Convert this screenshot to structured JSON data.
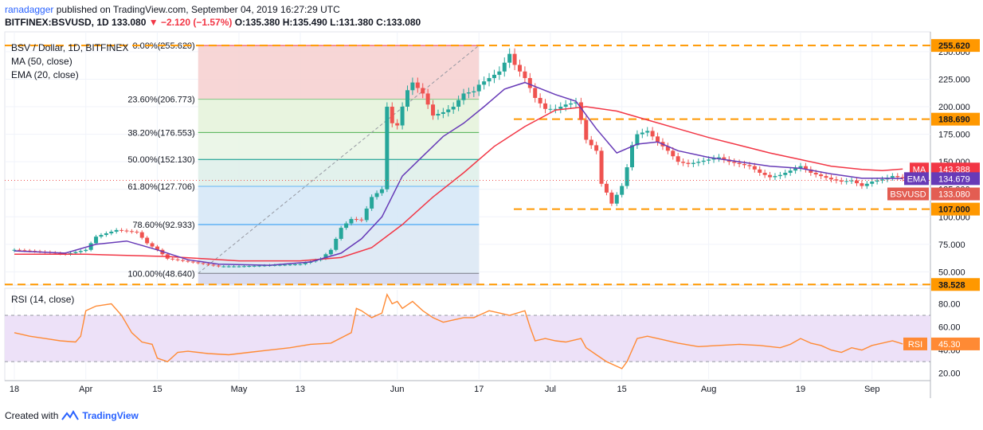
{
  "header": {
    "user": "ranadagger",
    "published": "published on TradingView.com, September 04, 2019 16:27:29 UTC",
    "symbol": "BITFINEX:BSVUSD, 1D",
    "last": "133.080",
    "change": "▼ −2.120 (−1.57%)",
    "ohlc": "O:135.380 H:135.490 L:131.380 C:133.080"
  },
  "legend": {
    "title": "BSV / Dollar, 1D, BITFINEX",
    "ma": "MA (50, close)",
    "ema": "EMA (20, close)"
  },
  "colors": {
    "candle_up": "#26a69a",
    "candle_down": "#ef5350",
    "ma": "#f23645",
    "ema": "#673ab7",
    "level": "#ff9800",
    "rsi": "#ff8a34",
    "rsi_band": "#ede1f8",
    "bsv_tag": "#e35d52",
    "text_dark": "#131722"
  },
  "chart_data": {
    "type": "candlestick",
    "title": "BSV / Dollar, 1D, BITFINEX",
    "y_range": [
      38,
      268
    ],
    "x_range_days": [
      0,
      176
    ],
    "y_ticks": [
      "50.000",
      "75.000",
      "100.000",
      "125.000",
      "150.000",
      "175.000",
      "200.000",
      "225.000",
      "250.000"
    ],
    "x_ticks": [
      {
        "label": "18",
        "day": 0
      },
      {
        "label": "Apr",
        "day": 14
      },
      {
        "label": "15",
        "day": 28
      },
      {
        "label": "May",
        "day": 44
      },
      {
        "label": "13",
        "day": 56
      },
      {
        "label": "Jun",
        "day": 75
      },
      {
        "label": "17",
        "day": 91
      },
      {
        "label": "Jul",
        "day": 105
      },
      {
        "label": "15",
        "day": 119
      },
      {
        "label": "Aug",
        "day": 136
      },
      {
        "label": "19",
        "day": 154
      },
      {
        "label": "Sep",
        "day": 168
      }
    ],
    "fibonacci": [
      {
        "label": "0.00%(255.620)",
        "value": 255.62,
        "color": "#f23645"
      },
      {
        "label": "23.60%(206.773)",
        "value": 206.773,
        "color": "#81c784"
      },
      {
        "label": "38.20%(176.553)",
        "value": 176.553,
        "color": "#4caf50"
      },
      {
        "label": "50.00%(152.130)",
        "value": 152.13,
        "color": "#009688"
      },
      {
        "label": "61.80%(127.706)",
        "value": 127.706,
        "color": "#64b5f6"
      },
      {
        "label": "78.60%(92.933)",
        "value": 92.933,
        "color": "#2196f3"
      },
      {
        "label": "100.00%(48.640)",
        "value": 48.64,
        "color": "#787b86"
      }
    ],
    "fib_span_days": [
      36,
      91
    ],
    "levels": [
      {
        "label": "255.620",
        "value": 255.62
      },
      {
        "label": "188.690",
        "value": 188.69
      },
      {
        "label": "107.000",
        "value": 107.0
      },
      {
        "label": "38.528",
        "value": 38.528
      }
    ],
    "last_value_tags": [
      {
        "name": "MA",
        "label": "143.388",
        "value": 143.388
      },
      {
        "name": "EMA",
        "label": "134.679",
        "value": 134.679
      },
      {
        "name": "BSVUSD",
        "label": "133.080",
        "value": 133.08
      }
    ],
    "anchors": [
      [
        0,
        70
      ],
      [
        6,
        68
      ],
      [
        10,
        66
      ],
      [
        14,
        70
      ],
      [
        16,
        82
      ],
      [
        20,
        88
      ],
      [
        24,
        86
      ],
      [
        26,
        76
      ],
      [
        28,
        70
      ],
      [
        30,
        62
      ],
      [
        33,
        60
      ],
      [
        36,
        58
      ],
      [
        40,
        55
      ],
      [
        44,
        55
      ],
      [
        50,
        56
      ],
      [
        56,
        57
      ],
      [
        60,
        62
      ],
      [
        62,
        70
      ],
      [
        64,
        90
      ],
      [
        66,
        98
      ],
      [
        68,
        97
      ],
      [
        70,
        118
      ],
      [
        72,
        125
      ],
      [
        73,
        200
      ],
      [
        74,
        185
      ],
      [
        75,
        183
      ],
      [
        76,
        200
      ],
      [
        77,
        215
      ],
      [
        78,
        222
      ],
      [
        80,
        212
      ],
      [
        82,
        192
      ],
      [
        84,
        195
      ],
      [
        86,
        200
      ],
      [
        88,
        212
      ],
      [
        90,
        214
      ],
      [
        91,
        220
      ],
      [
        93,
        226
      ],
      [
        95,
        232
      ],
      [
        97,
        248
      ],
      [
        98,
        238
      ],
      [
        100,
        226
      ],
      [
        102,
        208
      ],
      [
        104,
        198
      ],
      [
        106,
        198
      ],
      [
        108,
        202
      ],
      [
        110,
        204
      ],
      [
        111,
        188
      ],
      [
        112,
        170
      ],
      [
        114,
        160
      ],
      [
        115,
        130
      ],
      [
        116,
        122
      ],
      [
        117,
        112
      ],
      [
        118,
        120
      ],
      [
        119,
        128
      ],
      [
        120,
        145
      ],
      [
        121,
        165
      ],
      [
        122,
        175
      ],
      [
        124,
        178
      ],
      [
        126,
        168
      ],
      [
        128,
        160
      ],
      [
        130,
        150
      ],
      [
        132,
        148
      ],
      [
        134,
        150
      ],
      [
        136,
        152
      ],
      [
        138,
        154
      ],
      [
        140,
        150
      ],
      [
        142,
        148
      ],
      [
        144,
        146
      ],
      [
        146,
        140
      ],
      [
        148,
        136
      ],
      [
        150,
        138
      ],
      [
        152,
        142
      ],
      [
        154,
        146
      ],
      [
        156,
        140
      ],
      [
        158,
        137
      ],
      [
        160,
        134
      ],
      [
        162,
        132
      ],
      [
        164,
        133
      ],
      [
        166,
        128
      ],
      [
        168,
        132
      ],
      [
        170,
        134
      ],
      [
        172,
        137
      ],
      [
        174,
        135
      ],
      [
        175,
        133.08
      ]
    ],
    "ma_anchors": [
      [
        0,
        66
      ],
      [
        14,
        66
      ],
      [
        30,
        64
      ],
      [
        44,
        60
      ],
      [
        56,
        60
      ],
      [
        64,
        63
      ],
      [
        70,
        72
      ],
      [
        76,
        93
      ],
      [
        82,
        118
      ],
      [
        88,
        140
      ],
      [
        94,
        164
      ],
      [
        100,
        182
      ],
      [
        106,
        197
      ],
      [
        112,
        200
      ],
      [
        118,
        196
      ],
      [
        124,
        188
      ],
      [
        130,
        180
      ],
      [
        136,
        172
      ],
      [
        142,
        165
      ],
      [
        148,
        158
      ],
      [
        154,
        152
      ],
      [
        160,
        146
      ],
      [
        166,
        143
      ],
      [
        170,
        142
      ],
      [
        174,
        143.388
      ]
    ],
    "ema_anchors": [
      [
        0,
        69
      ],
      [
        10,
        67
      ],
      [
        16,
        75
      ],
      [
        22,
        78
      ],
      [
        28,
        70
      ],
      [
        34,
        61
      ],
      [
        40,
        57
      ],
      [
        50,
        56
      ],
      [
        58,
        59
      ],
      [
        64,
        67
      ],
      [
        68,
        80
      ],
      [
        72,
        100
      ],
      [
        76,
        137
      ],
      [
        80,
        155
      ],
      [
        84,
        173
      ],
      [
        88,
        185
      ],
      [
        92,
        200
      ],
      [
        96,
        216
      ],
      [
        100,
        222
      ],
      [
        106,
        211
      ],
      [
        110,
        205
      ],
      [
        114,
        180
      ],
      [
        118,
        158
      ],
      [
        122,
        166
      ],
      [
        126,
        168
      ],
      [
        130,
        160
      ],
      [
        136,
        154
      ],
      [
        142,
        150
      ],
      [
        148,
        146
      ],
      [
        154,
        144
      ],
      [
        160,
        139
      ],
      [
        166,
        135
      ],
      [
        170,
        135
      ],
      [
        174,
        134.679
      ]
    ],
    "rsi": {
      "title": "RSI (14, close)",
      "y_range": [
        15,
        92
      ],
      "band": [
        30,
        70
      ],
      "ticks": [
        "20.00",
        "40.00",
        "60.00",
        "80.00"
      ],
      "tag": "RSI",
      "tag_value": "45.30",
      "anchors": [
        [
          0,
          55
        ],
        [
          3,
          52
        ],
        [
          6,
          50
        ],
        [
          9,
          48
        ],
        [
          12,
          47
        ],
        [
          13,
          52
        ],
        [
          14,
          74
        ],
        [
          16,
          78
        ],
        [
          19,
          80
        ],
        [
          21,
          70
        ],
        [
          23,
          55
        ],
        [
          25,
          47
        ],
        [
          27,
          45
        ],
        [
          28,
          33
        ],
        [
          30,
          30
        ],
        [
          32,
          38
        ],
        [
          34,
          39
        ],
        [
          38,
          37
        ],
        [
          42,
          36
        ],
        [
          46,
          38
        ],
        [
          50,
          40
        ],
        [
          54,
          42
        ],
        [
          58,
          45
        ],
        [
          62,
          46
        ],
        [
          66,
          55
        ],
        [
          67,
          76
        ],
        [
          68,
          74
        ],
        [
          70,
          68
        ],
        [
          72,
          72
        ],
        [
          73,
          88
        ],
        [
          74,
          80
        ],
        [
          75,
          82
        ],
        [
          76,
          76
        ],
        [
          78,
          82
        ],
        [
          80,
          74
        ],
        [
          82,
          68
        ],
        [
          84,
          64
        ],
        [
          86,
          66
        ],
        [
          88,
          68
        ],
        [
          90,
          68
        ],
        [
          91,
          70
        ],
        [
          93,
          74
        ],
        [
          95,
          72
        ],
        [
          97,
          70
        ],
        [
          100,
          74
        ],
        [
          101,
          60
        ],
        [
          102,
          48
        ],
        [
          104,
          50
        ],
        [
          106,
          48
        ],
        [
          108,
          47
        ],
        [
          111,
          50
        ],
        [
          112,
          42
        ],
        [
          114,
          36
        ],
        [
          116,
          30
        ],
        [
          118,
          26
        ],
        [
          119,
          24
        ],
        [
          120,
          30
        ],
        [
          121,
          40
        ],
        [
          122,
          50
        ],
        [
          124,
          52
        ],
        [
          126,
          50
        ],
        [
          130,
          46
        ],
        [
          134,
          43
        ],
        [
          138,
          44
        ],
        [
          142,
          45
        ],
        [
          146,
          44
        ],
        [
          150,
          42
        ],
        [
          152,
          45
        ],
        [
          154,
          50
        ],
        [
          156,
          46
        ],
        [
          158,
          44
        ],
        [
          160,
          40
        ],
        [
          162,
          38
        ],
        [
          164,
          42
        ],
        [
          166,
          40
        ],
        [
          168,
          44
        ],
        [
          170,
          46
        ],
        [
          172,
          48
        ],
        [
          174,
          45.3
        ]
      ]
    }
  },
  "footer": {
    "created_with": "Created with",
    "brand": "TradingView"
  }
}
